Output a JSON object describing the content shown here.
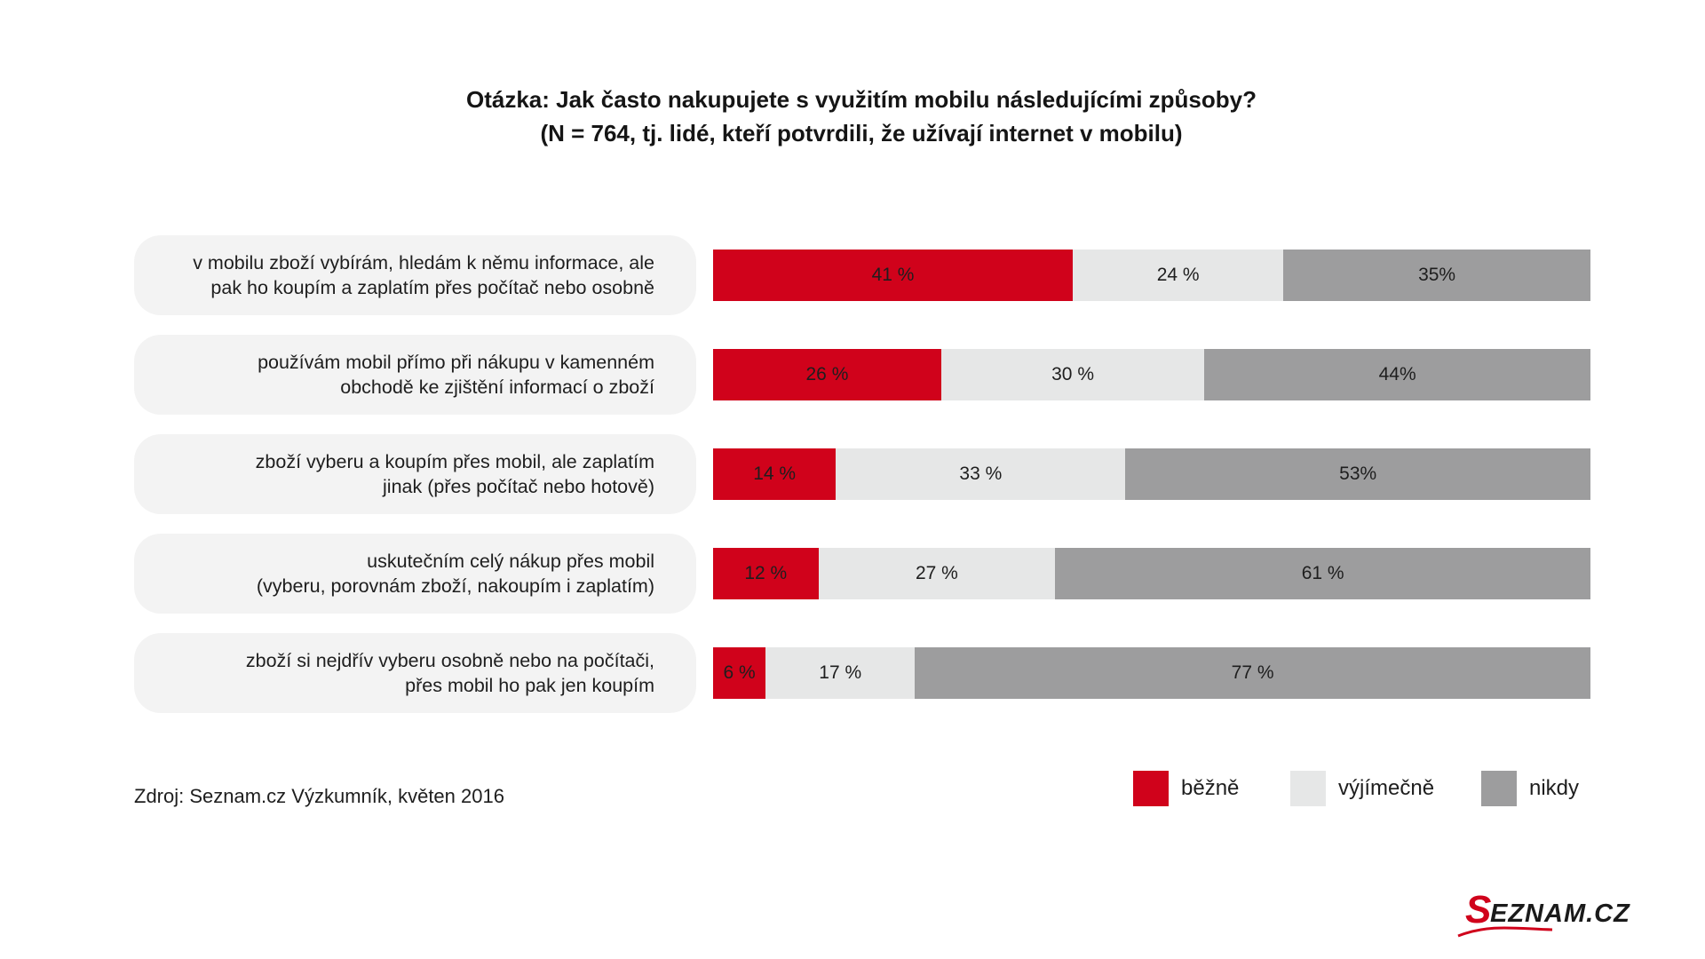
{
  "title": {
    "line1": "Otázka: Jak často nakupujete s využitím mobilu následujícími způsoby?",
    "line2": "(N = 764, tj. lidé, kteří potvrdili, že užívají internet v mobilu)"
  },
  "source": "Zdroj: Seznam.cz Výzkumník, květen 2016",
  "logo_text": "SEZNAM.CZ",
  "colors": {
    "bezne": "#d0021b",
    "vyjimecne": "#e6e7e7",
    "nikdy": "#9d9d9e"
  },
  "chart_data": {
    "type": "bar",
    "stacked": true,
    "orientation": "horizontal",
    "title": "Otázka: Jak často nakupujete s využitím mobilu následujícími způsoby? (N = 764, tj. lidé, kteří potvrdili, že užívají internet v mobilu)",
    "categories": [
      [
        "v mobilu zboží vybírám, hledám k němu informace, ale",
        "pak ho koupím a zaplatím přes počítač nebo osobně"
      ],
      [
        "používám mobil přímo při nákupu v kamenném",
        "obchodě ke zjištění informací o zboží"
      ],
      [
        "zboží vyberu a koupím přes mobil, ale zaplatím",
        "jinak (přes počítač nebo hotově)"
      ],
      [
        "uskutečním celý nákup přes mobil",
        "(vyberu, porovnám zboží, nakoupím i zaplatím)"
      ],
      [
        "zboží si nejdřív vyberu osobně nebo na počítači,",
        "přes mobil ho pak jen koupím"
      ]
    ],
    "series": [
      {
        "name": "běžně",
        "color": "#d0021b",
        "values": [
          41,
          26,
          14,
          12,
          6
        ],
        "labels": [
          "41 %",
          "26 %",
          "14 %",
          "12 %",
          "6 %"
        ]
      },
      {
        "name": "výjímečně",
        "color": "#e6e7e7",
        "values": [
          24,
          30,
          33,
          27,
          17
        ],
        "labels": [
          "24 %",
          "30 %",
          "33 %",
          "27 %",
          "17 %"
        ]
      },
      {
        "name": "nikdy",
        "color": "#9d9d9e",
        "values": [
          35,
          44,
          53,
          61,
          77
        ],
        "labels": [
          "35%",
          "44%",
          "53%",
          "61 %",
          "77 %"
        ]
      }
    ],
    "xlim": [
      0,
      100
    ],
    "legend": "bottom-right",
    "grid": false
  }
}
